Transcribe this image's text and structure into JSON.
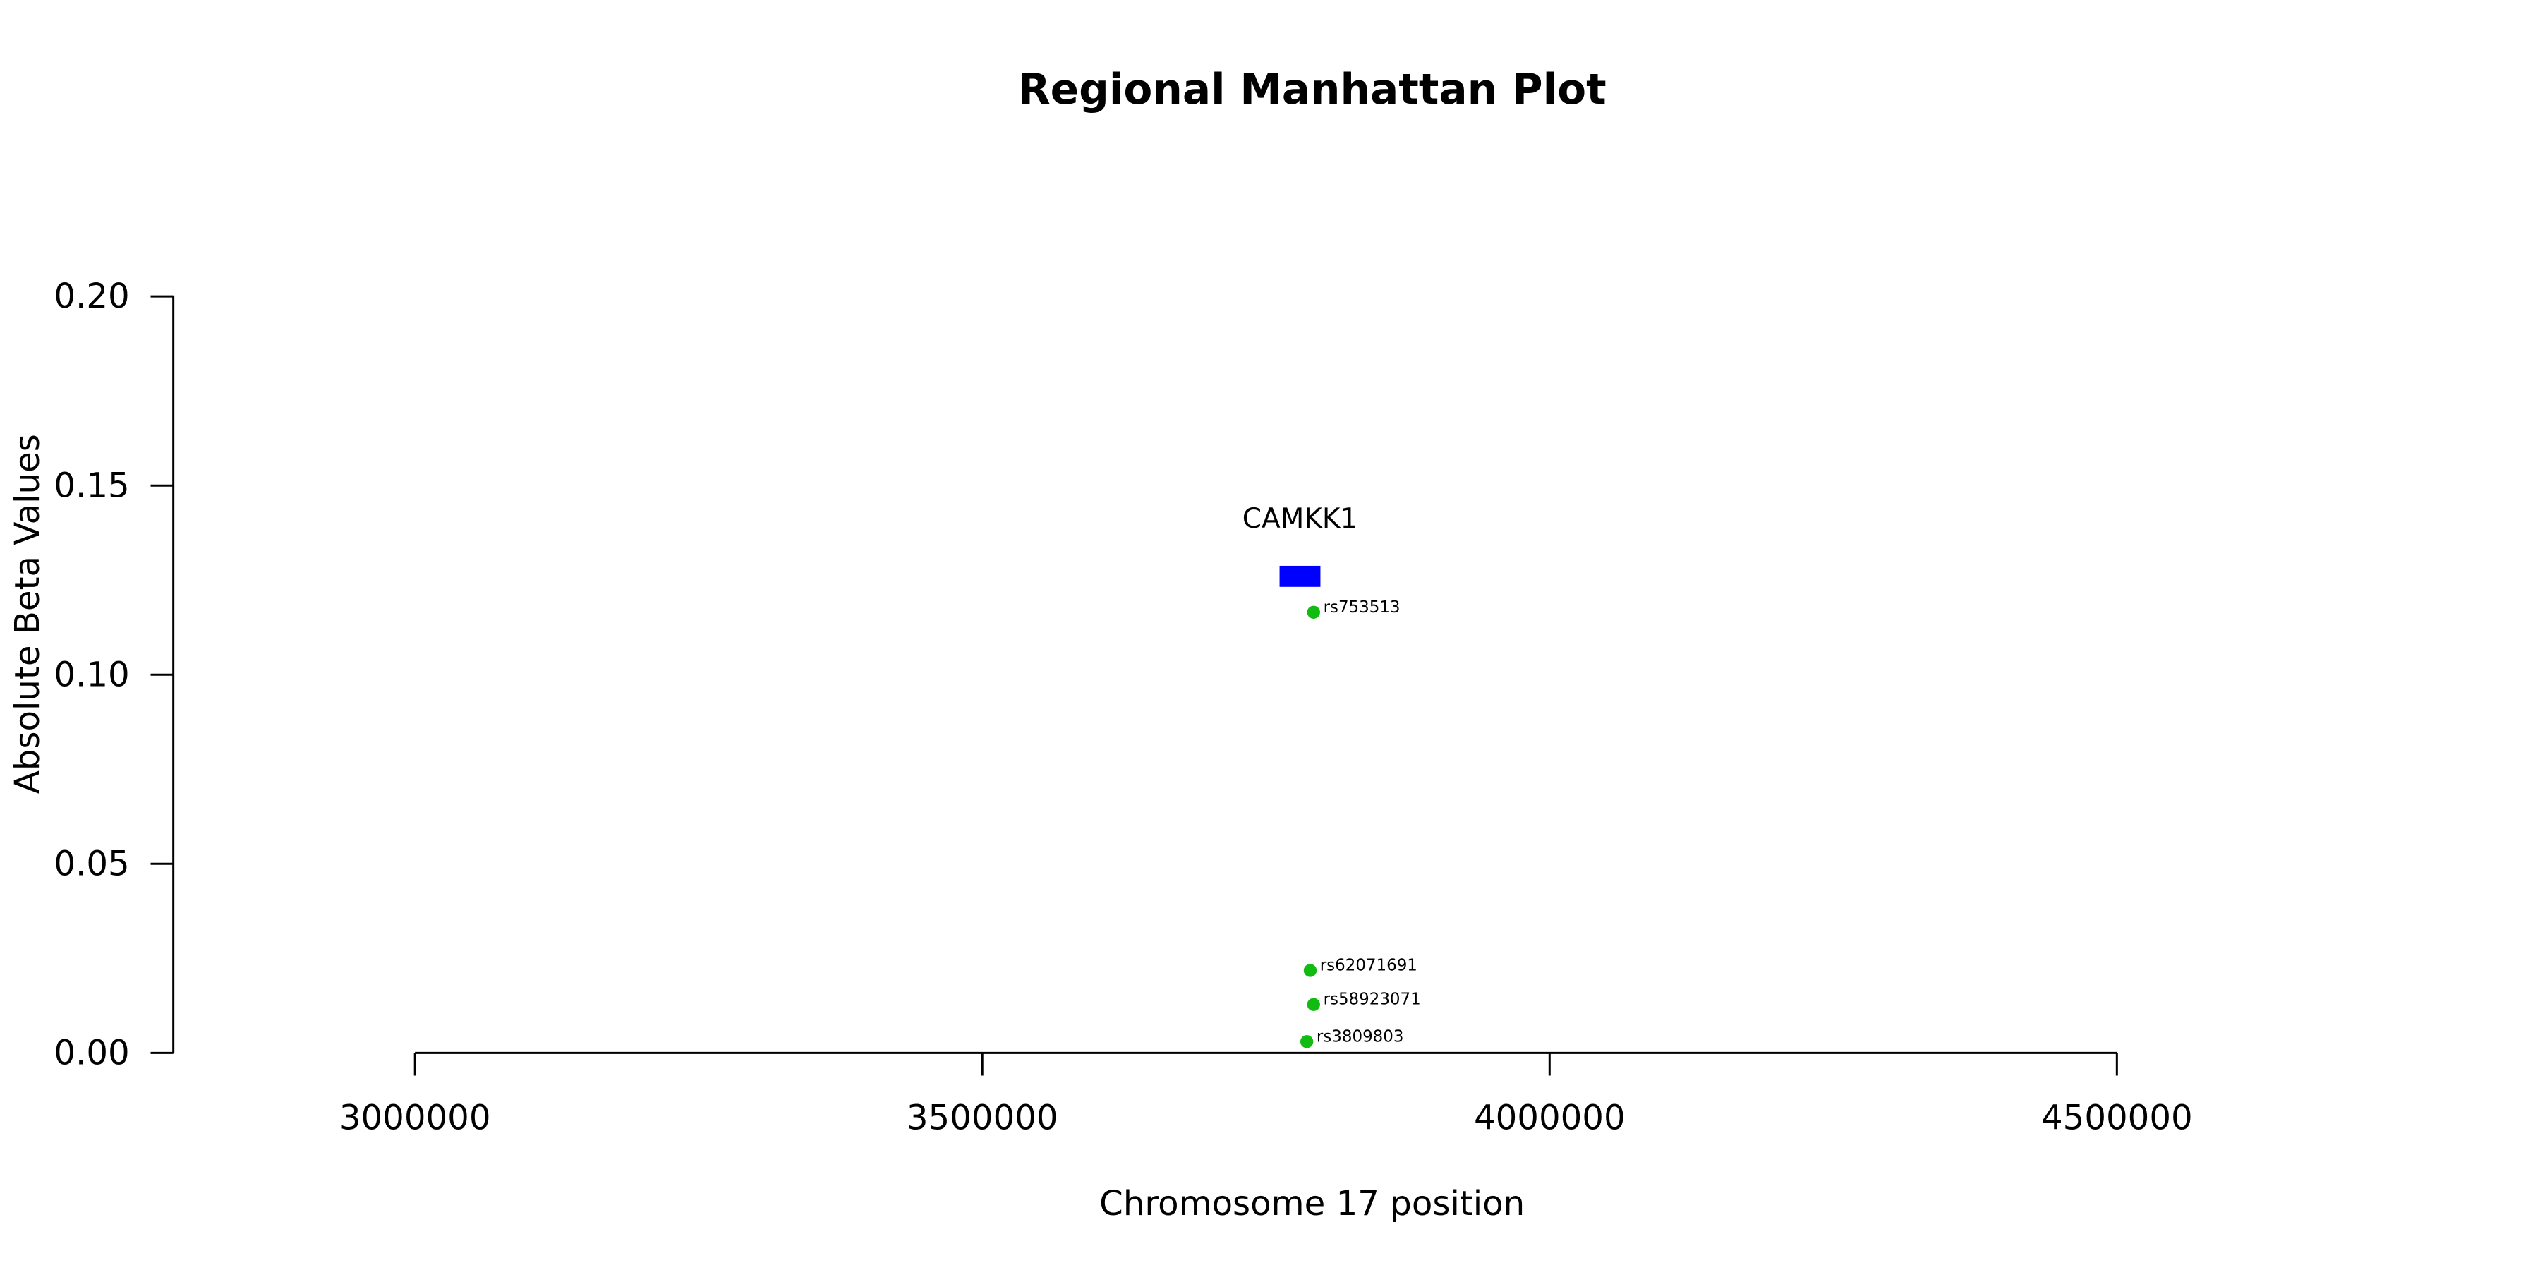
{
  "chart_data": {
    "type": "scatter",
    "title": "Regional Manhattan Plot",
    "x_label": "Chromosome 17 position",
    "y_label": "Absolute Beta Values",
    "xlim": [
      2787000,
      4713000
    ],
    "ylim": [
      0,
      0.2
    ],
    "xticks": [
      3000000,
      3500000,
      4000000,
      4500000
    ],
    "yticks": [
      {
        "value": 0,
        "label": "0.00"
      },
      0.05,
      {
        "value": 0.1,
        "label": "0.10"
      },
      0.15,
      {
        "value": 0.2,
        "label": "0.20"
      }
    ],
    "color": "#11bb11",
    "points": [
      {
        "label": "rs753513",
        "x": 3792000,
        "y": 0.1165
      },
      {
        "label": "rs62071691",
        "x": 3789000,
        "y": 0.0218
      },
      {
        "label": "rs58923071",
        "x": 3792000,
        "y": 0.0128
      },
      {
        "label": "rs3809803",
        "x": 3786000,
        "y": 0.003
      }
    ],
    "genes": [
      {
        "name": "CAMKK1",
        "start": 3762000,
        "end": 3798000,
        "y": 0.126,
        "color": "#0000ff"
      }
    ]
  }
}
